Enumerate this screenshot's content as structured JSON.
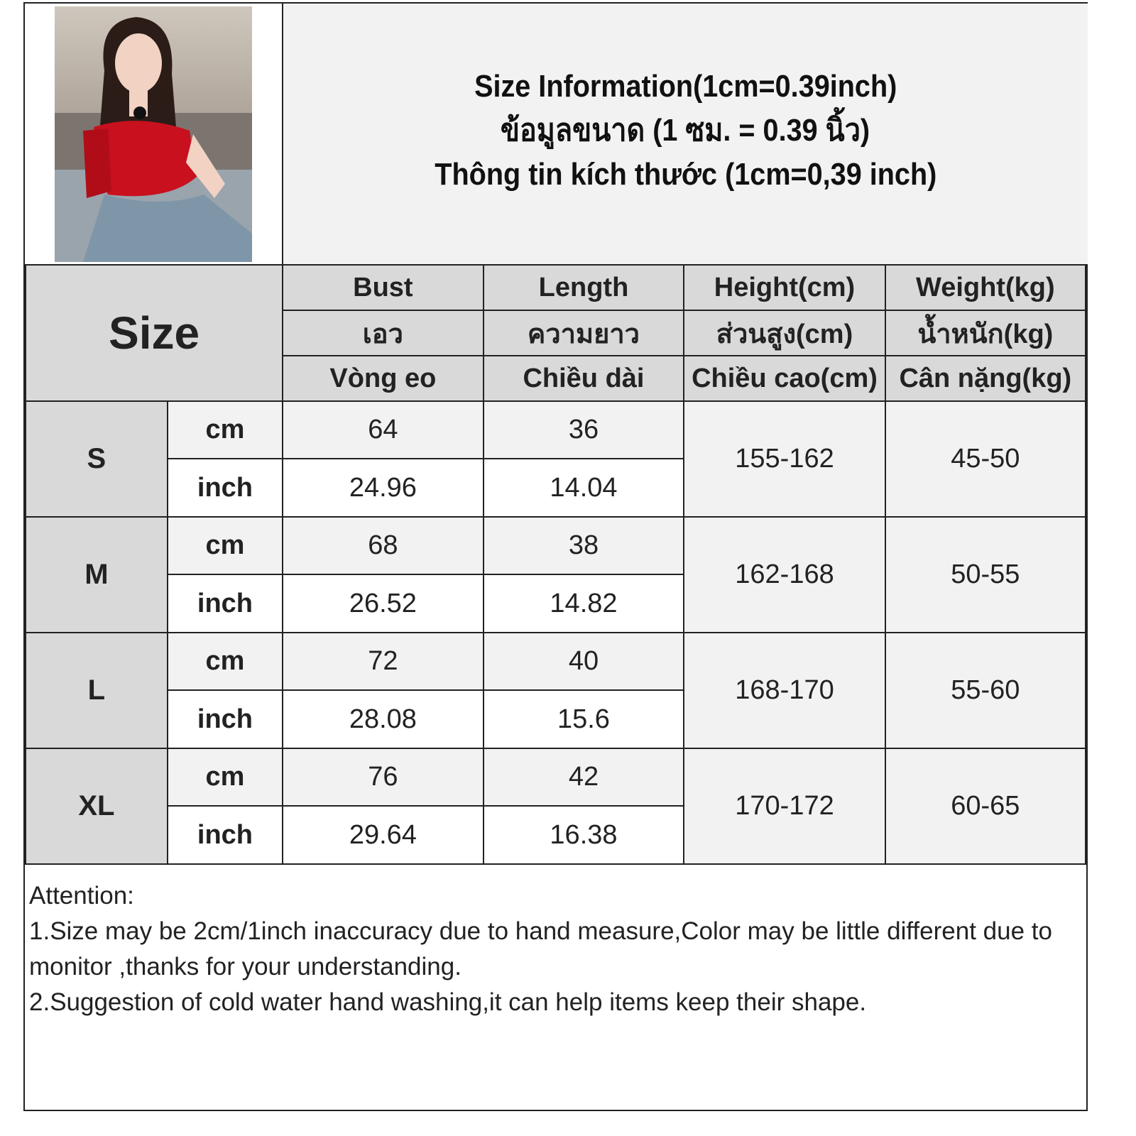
{
  "title": {
    "line1": "Size Information(1cm=0.39inch)",
    "line2": "ข้อมูลขนาด (1 ซม. = 0.39 นิ้ว)",
    "line3": "Thông tin kích thước (1cm=0,39 inch)"
  },
  "header": {
    "size_label": "Size",
    "columns": [
      {
        "en": "Bust",
        "th": "เอว",
        "vi": "Vòng eo"
      },
      {
        "en": "Length",
        "th": "ความยาว",
        "vi": "Chiều dài"
      },
      {
        "en": "Height(cm)",
        "th": "ส่วนสูง(cm)",
        "vi": "Chiều cao(cm)"
      },
      {
        "en": "Weight(kg)",
        "th": "น้ำหนัก(kg)",
        "vi": "Cân nặng(kg)"
      }
    ]
  },
  "rows": [
    {
      "size": "S",
      "cm_unit": "cm",
      "inch_unit": "inch",
      "bust_cm": "64",
      "length_cm": "36",
      "bust_inch": "24.96",
      "length_inch": "14.04",
      "height": "155-162",
      "weight": "45-50"
    },
    {
      "size": "M",
      "cm_unit": "cm",
      "inch_unit": "inch",
      "bust_cm": "68",
      "length_cm": "38",
      "bust_inch": "26.52",
      "length_inch": "14.82",
      "height": "162-168",
      "weight": "50-55"
    },
    {
      "size": "L",
      "cm_unit": "cm",
      "inch_unit": "inch",
      "bust_cm": "72",
      "length_cm": "40",
      "bust_inch": "28.08",
      "length_inch": "15.6",
      "height": "168-170",
      "weight": "55-60"
    },
    {
      "size": "XL",
      "cm_unit": "cm",
      "inch_unit": "inch",
      "bust_cm": "76",
      "length_cm": "42",
      "bust_inch": "29.64",
      "length_inch": "16.38",
      "height": "170-172",
      "weight": "60-65"
    }
  ],
  "notes": {
    "heading": "Attention:",
    "item1": "1.Size may be 2cm/1inch inaccuracy due to hand measure,Color may be little different due to monitor ,thanks for your understanding.",
    "item2": "2.Suggestion of cold water hand washing,it can help items keep their shape."
  },
  "colors": {
    "header_gray": "#d9d9d9",
    "light_gray": "#f2f2f2",
    "top_red": "#c8101e"
  }
}
